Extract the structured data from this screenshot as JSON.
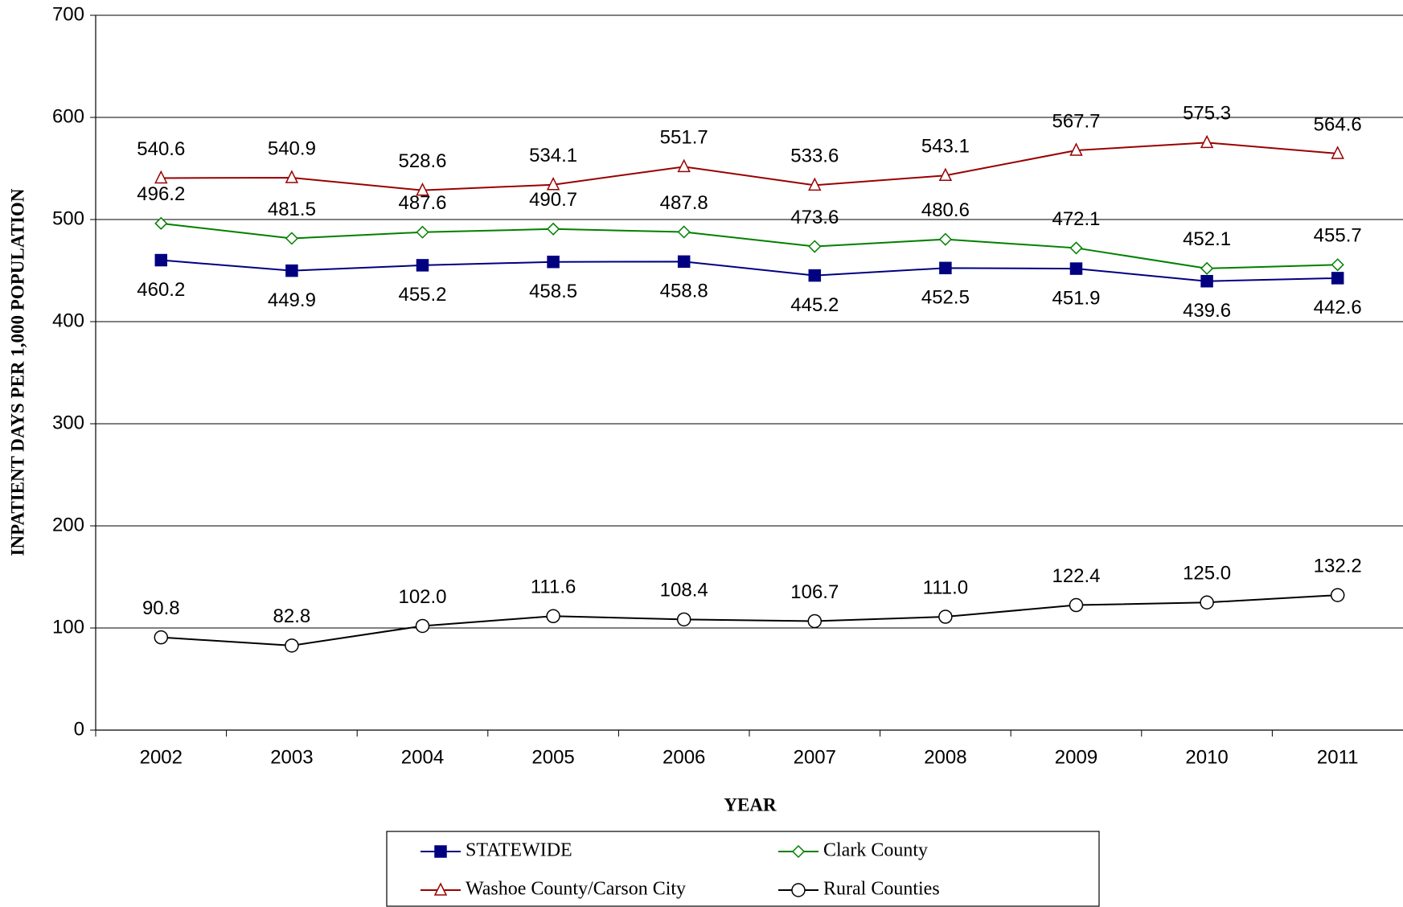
{
  "chart_data": {
    "type": "line",
    "y_label": "INPATIENT DAYS PER 1,000 POPULATION",
    "x_label": "YEAR",
    "categories": [
      "2002",
      "2003",
      "2004",
      "2005",
      "2006",
      "2007",
      "2008",
      "2009",
      "2010",
      "2011"
    ],
    "series": [
      {
        "name": "STATEWIDE",
        "color": "#000080",
        "marker": "square",
        "values": [
          460.2,
          449.9,
          455.2,
          458.5,
          458.8,
          445.2,
          452.5,
          451.9,
          439.6,
          442.6
        ]
      },
      {
        "name": "Clark County",
        "color": "#008000",
        "marker": "diamond",
        "values": [
          496.2,
          481.5,
          487.6,
          490.7,
          487.8,
          473.6,
          480.6,
          472.1,
          452.1,
          455.7
        ]
      },
      {
        "name": "Washoe County/Carson City",
        "color": "#990000",
        "marker": "triangle",
        "values": [
          540.6,
          540.9,
          528.6,
          534.1,
          551.7,
          533.6,
          543.1,
          567.7,
          575.3,
          564.6
        ]
      },
      {
        "name": "Rural Counties",
        "color": "#000000",
        "marker": "circle",
        "values": [
          90.8,
          82.8,
          102.0,
          111.6,
          108.4,
          106.7,
          111.0,
          122.4,
          125.0,
          132.2
        ],
        "value_labels": [
          "90.8",
          "82.8",
          "102.0",
          "111.6",
          "108.4",
          "106.7",
          "111.0",
          "122.4",
          "125.0",
          "132.2"
        ]
      }
    ],
    "ylim": [
      0,
      700
    ],
    "yticks": [
      0,
      100,
      200,
      300,
      400,
      500,
      600,
      700
    ],
    "grid": true
  }
}
